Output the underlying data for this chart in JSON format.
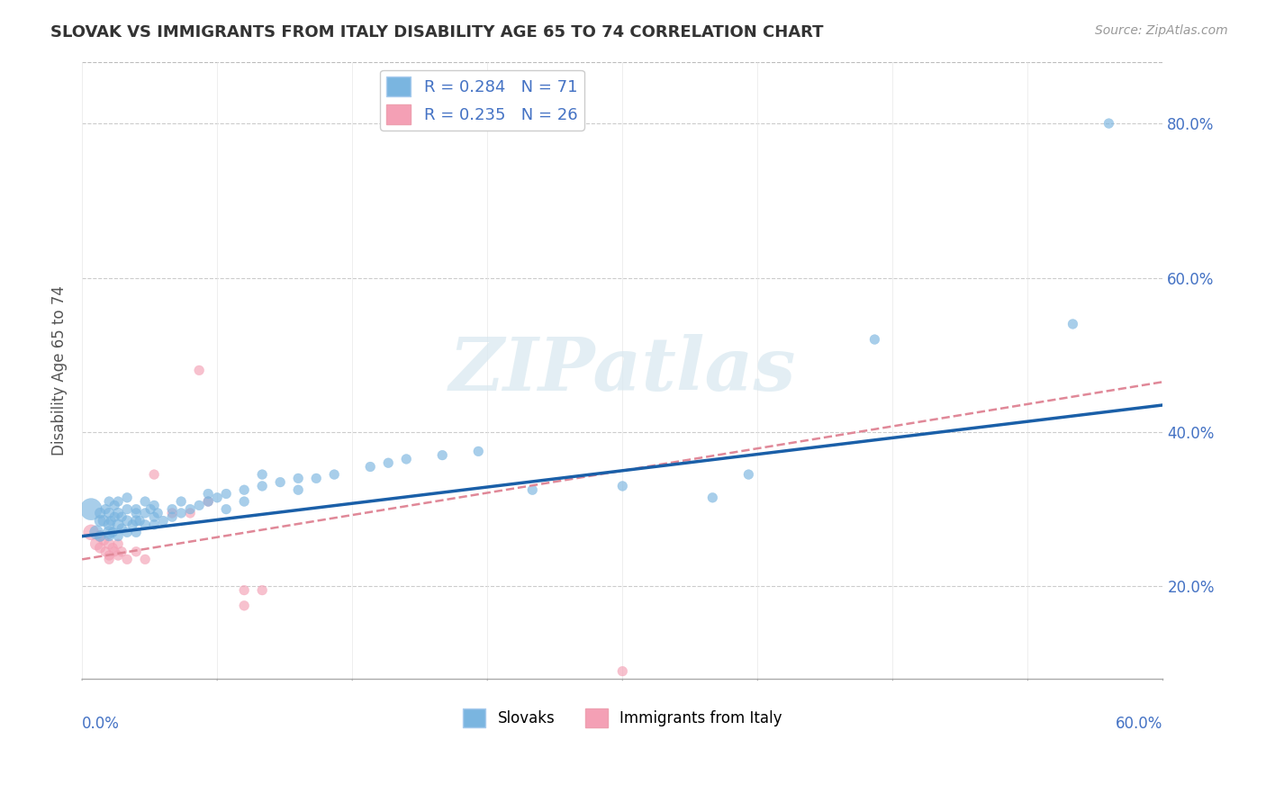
{
  "title": "SLOVAK VS IMMIGRANTS FROM ITALY DISABILITY AGE 65 TO 74 CORRELATION CHART",
  "source": "Source: ZipAtlas.com",
  "ylabel": "Disability Age 65 to 74",
  "xlim": [
    0.0,
    0.6
  ],
  "ylim": [
    0.08,
    0.88
  ],
  "ytick_vals": [
    0.2,
    0.4,
    0.6,
    0.8
  ],
  "ytick_labels": [
    "20.0%",
    "40.0%",
    "60.0%",
    "80.0%"
  ],
  "blue_color": "#7ab5e0",
  "pink_color": "#f4a0b5",
  "blue_line_color": "#1a5fa8",
  "pink_line_color": "#e08898",
  "blue_scatter": [
    [
      0.005,
      0.3
    ],
    [
      0.008,
      0.27
    ],
    [
      0.01,
      0.285
    ],
    [
      0.01,
      0.295
    ],
    [
      0.01,
      0.265
    ],
    [
      0.012,
      0.285
    ],
    [
      0.013,
      0.3
    ],
    [
      0.015,
      0.27
    ],
    [
      0.015,
      0.28
    ],
    [
      0.015,
      0.295
    ],
    [
      0.015,
      0.265
    ],
    [
      0.015,
      0.31
    ],
    [
      0.016,
      0.285
    ],
    [
      0.017,
      0.27
    ],
    [
      0.018,
      0.29
    ],
    [
      0.018,
      0.305
    ],
    [
      0.02,
      0.28
    ],
    [
      0.02,
      0.295
    ],
    [
      0.02,
      0.265
    ],
    [
      0.02,
      0.31
    ],
    [
      0.022,
      0.275
    ],
    [
      0.022,
      0.29
    ],
    [
      0.025,
      0.285
    ],
    [
      0.025,
      0.3
    ],
    [
      0.025,
      0.27
    ],
    [
      0.025,
      0.315
    ],
    [
      0.028,
      0.28
    ],
    [
      0.03,
      0.285
    ],
    [
      0.03,
      0.27
    ],
    [
      0.03,
      0.3
    ],
    [
      0.03,
      0.295
    ],
    [
      0.032,
      0.285
    ],
    [
      0.035,
      0.295
    ],
    [
      0.035,
      0.28
    ],
    [
      0.035,
      0.31
    ],
    [
      0.038,
      0.3
    ],
    [
      0.04,
      0.29
    ],
    [
      0.04,
      0.305
    ],
    [
      0.04,
      0.28
    ],
    [
      0.042,
      0.295
    ],
    [
      0.045,
      0.285
    ],
    [
      0.05,
      0.3
    ],
    [
      0.05,
      0.29
    ],
    [
      0.055,
      0.295
    ],
    [
      0.055,
      0.31
    ],
    [
      0.06,
      0.3
    ],
    [
      0.065,
      0.305
    ],
    [
      0.07,
      0.32
    ],
    [
      0.07,
      0.31
    ],
    [
      0.075,
      0.315
    ],
    [
      0.08,
      0.32
    ],
    [
      0.08,
      0.3
    ],
    [
      0.09,
      0.325
    ],
    [
      0.09,
      0.31
    ],
    [
      0.1,
      0.33
    ],
    [
      0.1,
      0.345
    ],
    [
      0.11,
      0.335
    ],
    [
      0.12,
      0.34
    ],
    [
      0.12,
      0.325
    ],
    [
      0.13,
      0.34
    ],
    [
      0.14,
      0.345
    ],
    [
      0.16,
      0.355
    ],
    [
      0.17,
      0.36
    ],
    [
      0.18,
      0.365
    ],
    [
      0.2,
      0.37
    ],
    [
      0.22,
      0.375
    ],
    [
      0.25,
      0.325
    ],
    [
      0.3,
      0.33
    ],
    [
      0.35,
      0.315
    ],
    [
      0.37,
      0.345
    ],
    [
      0.44,
      0.52
    ],
    [
      0.55,
      0.54
    ],
    [
      0.57,
      0.8
    ]
  ],
  "blue_scatter_sizes": [
    300,
    120,
    80,
    70,
    70,
    80,
    60,
    100,
    80,
    70,
    60,
    60,
    60,
    60,
    60,
    60,
    80,
    70,
    60,
    60,
    60,
    60,
    70,
    60,
    60,
    60,
    60,
    70,
    60,
    60,
    60,
    60,
    60,
    60,
    60,
    60,
    60,
    60,
    60,
    60,
    60,
    60,
    60,
    60,
    60,
    60,
    60,
    60,
    60,
    60,
    60,
    60,
    60,
    60,
    60,
    60,
    60,
    60,
    60,
    60,
    60,
    60,
    60,
    60,
    60,
    60,
    60,
    60,
    60,
    60,
    60,
    60,
    60
  ],
  "pink_scatter": [
    [
      0.005,
      0.27
    ],
    [
      0.008,
      0.255
    ],
    [
      0.01,
      0.265
    ],
    [
      0.01,
      0.25
    ],
    [
      0.012,
      0.26
    ],
    [
      0.013,
      0.245
    ],
    [
      0.015,
      0.255
    ],
    [
      0.015,
      0.24
    ],
    [
      0.015,
      0.235
    ],
    [
      0.017,
      0.25
    ],
    [
      0.018,
      0.245
    ],
    [
      0.02,
      0.255
    ],
    [
      0.02,
      0.24
    ],
    [
      0.022,
      0.245
    ],
    [
      0.025,
      0.235
    ],
    [
      0.03,
      0.245
    ],
    [
      0.035,
      0.235
    ],
    [
      0.04,
      0.345
    ],
    [
      0.05,
      0.295
    ],
    [
      0.06,
      0.295
    ],
    [
      0.065,
      0.48
    ],
    [
      0.07,
      0.31
    ],
    [
      0.09,
      0.195
    ],
    [
      0.09,
      0.175
    ],
    [
      0.1,
      0.195
    ],
    [
      0.3,
      0.09
    ]
  ],
  "pink_scatter_sizes": [
    150,
    100,
    80,
    70,
    70,
    60,
    70,
    60,
    60,
    60,
    60,
    60,
    60,
    60,
    60,
    60,
    60,
    60,
    60,
    60,
    60,
    60,
    60,
    60,
    60,
    60
  ],
  "blue_line_x": [
    0.0,
    0.6
  ],
  "blue_line_y": [
    0.265,
    0.435
  ],
  "pink_line_x": [
    0.0,
    0.6
  ],
  "pink_line_y": [
    0.235,
    0.465
  ]
}
